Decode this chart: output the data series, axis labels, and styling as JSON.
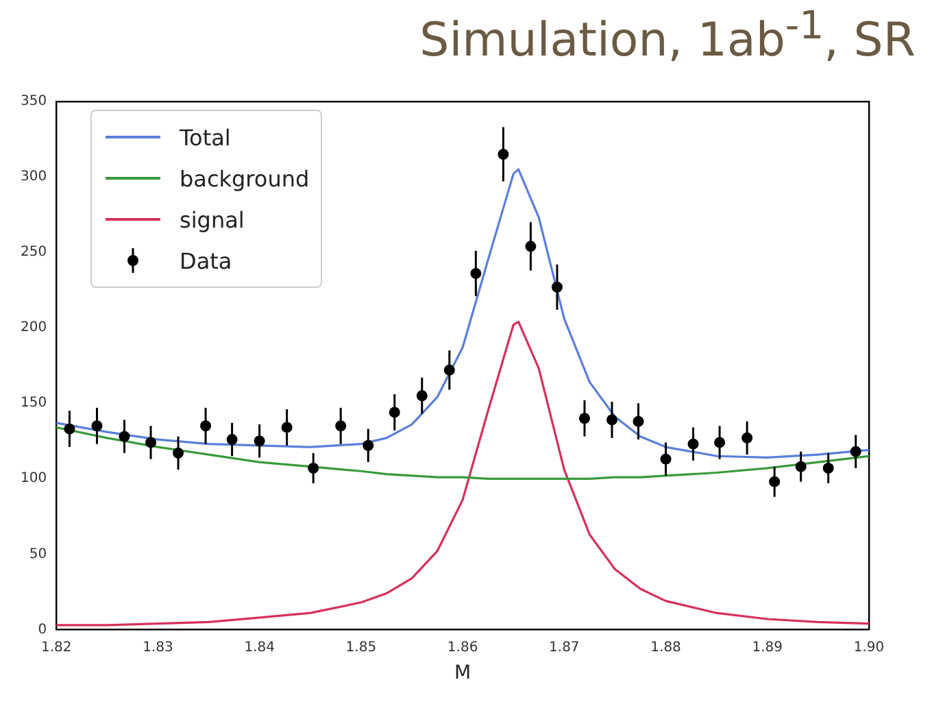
{
  "chart_data": {
    "type": "line",
    "title": "Simulation, 1ab$^{-1}$, SR",
    "xlabel": "M",
    "xlim": [
      1.82,
      1.9
    ],
    "xticks": [
      1.82,
      1.83,
      1.84,
      1.85,
      1.86,
      1.87,
      1.88,
      1.89,
      {
        "value": 1.9,
        "label": "1.90"
      }
    ],
    "ylim": [
      0,
      350
    ],
    "yticks": [
      0,
      50,
      100,
      150,
      200,
      250,
      300,
      350
    ],
    "grid": false,
    "legend": "top left",
    "series": [
      {
        "name": "Total",
        "color": "#5a7fdb",
        "marker": "none",
        "x": [
          1.82,
          1.825,
          1.83,
          1.835,
          1.84,
          1.845,
          1.85,
          1.8525,
          1.855,
          1.8575,
          1.86,
          1.8625,
          1.865,
          1.8655,
          1.8675,
          1.87,
          1.8725,
          1.875,
          1.8775,
          1.88,
          1.885,
          1.89,
          1.895,
          1.9
        ],
        "values": [
          137,
          131,
          126,
          123,
          122,
          121,
          123,
          127,
          136,
          154,
          187,
          245,
          302,
          305,
          273,
          206,
          164,
          141,
          128,
          121,
          115,
          114,
          116,
          119
        ]
      },
      {
        "name": "background",
        "color": "#3a9a3a",
        "marker": "none",
        "x": [
          1.82,
          1.825,
          1.83,
          1.835,
          1.84,
          1.845,
          1.85,
          1.8525,
          1.855,
          1.8575,
          1.86,
          1.8625,
          1.865,
          1.8655,
          1.8675,
          1.87,
          1.8725,
          1.875,
          1.8775,
          1.88,
          1.885,
          1.89,
          1.895,
          1.9
        ],
        "values": [
          134,
          127,
          121,
          116,
          111,
          108,
          105,
          103,
          102,
          101,
          101,
          100,
          100,
          100,
          100,
          100,
          100,
          101,
          101,
          102,
          104,
          107,
          111,
          115
        ]
      },
      {
        "name": "signal",
        "color": "#d6305a",
        "marker": "none",
        "x": [
          1.82,
          1.825,
          1.83,
          1.835,
          1.84,
          1.845,
          1.85,
          1.8525,
          1.855,
          1.8575,
          1.86,
          1.8625,
          1.865,
          1.8655,
          1.8675,
          1.87,
          1.8725,
          1.875,
          1.8775,
          1.88,
          1.885,
          1.89,
          1.895,
          1.9
        ],
        "values": [
          3,
          3,
          4,
          5,
          8,
          11,
          18,
          24,
          34,
          52,
          86,
          145,
          202,
          204,
          173,
          106,
          63,
          40,
          27,
          19,
          11,
          7,
          5,
          4
        ]
      },
      {
        "name": "Data",
        "type": "scatter",
        "color": "#000000",
        "marker": "circle",
        "x": [
          1.8213,
          1.824,
          1.8267,
          1.8293,
          1.832,
          1.8347,
          1.8373,
          1.84,
          1.8427,
          1.8453,
          1.848,
          1.8507,
          1.8533,
          1.856,
          1.8587,
          1.8613,
          1.864,
          1.8667,
          1.8693,
          1.872,
          1.8747,
          1.8773,
          1.88,
          1.8827,
          1.8853,
          1.888,
          1.8907,
          1.8933,
          1.896,
          1.8987
        ],
        "values": [
          133,
          135,
          128,
          124,
          117,
          135,
          126,
          125,
          134,
          107,
          135,
          122,
          144,
          155,
          172,
          236,
          315,
          254,
          227,
          140,
          139,
          138,
          113,
          123,
          124,
          127,
          98,
          108,
          107,
          118
        ],
        "errors": [
          12,
          12,
          11,
          11,
          11,
          12,
          11,
          11,
          12,
          10,
          12,
          11,
          12,
          12,
          13,
          15,
          18,
          16,
          15,
          12,
          12,
          12,
          11,
          11,
          11,
          11,
          10,
          10,
          10,
          11
        ]
      }
    ]
  }
}
